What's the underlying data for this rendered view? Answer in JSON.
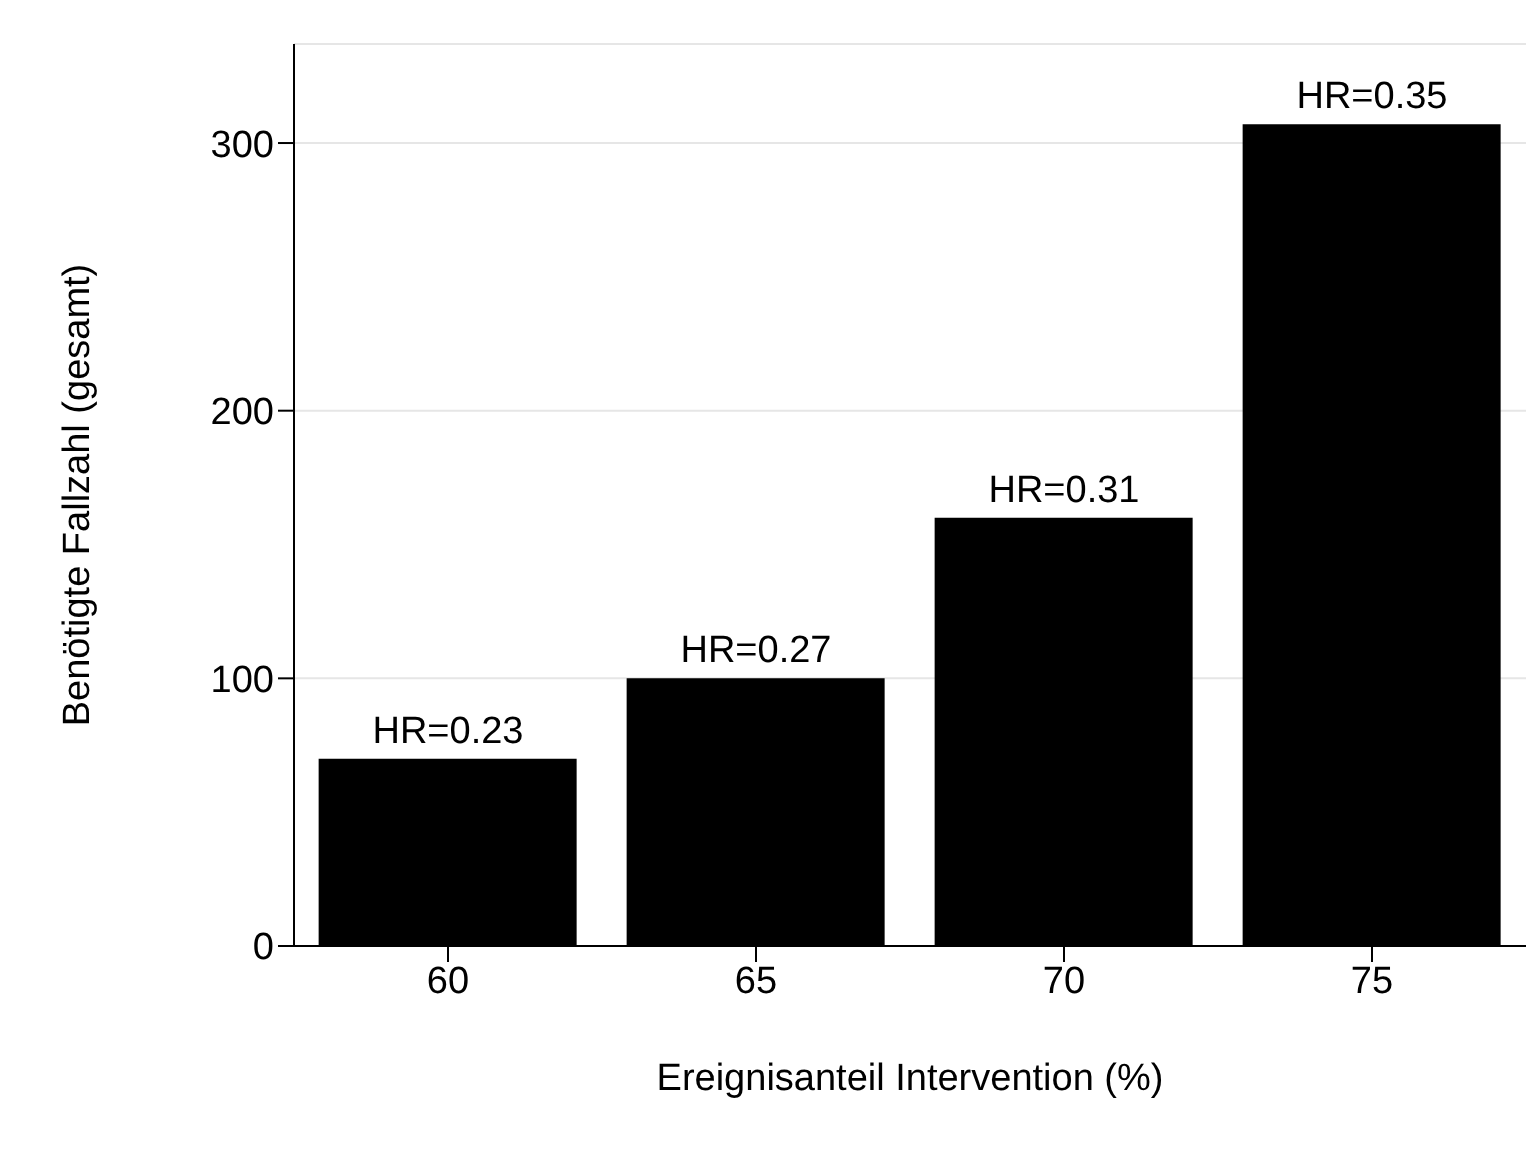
{
  "chart_data": {
    "type": "bar",
    "xlabel": "Ereignisanteil Intervention (%)",
    "ylabel": "Benötigte Fallzahl (gesamt)",
    "categories": [
      "60",
      "65",
      "70",
      "75"
    ],
    "values": [
      70,
      100,
      160,
      307
    ],
    "annotations": [
      {
        "text": "HR=0.23",
        "x": "60",
        "y": 70
      },
      {
        "text": "HR=0.27",
        "x": "65",
        "y": 100
      },
      {
        "text": "HR=0.31",
        "x": "70",
        "y": 160
      },
      {
        "text": "HR=0.35",
        "x": "75",
        "y": 307
      }
    ],
    "color": "#000000",
    "ylim": [
      0,
      337
    ],
    "yticks": [
      0,
      100,
      200,
      300
    ],
    "grid": "y"
  }
}
